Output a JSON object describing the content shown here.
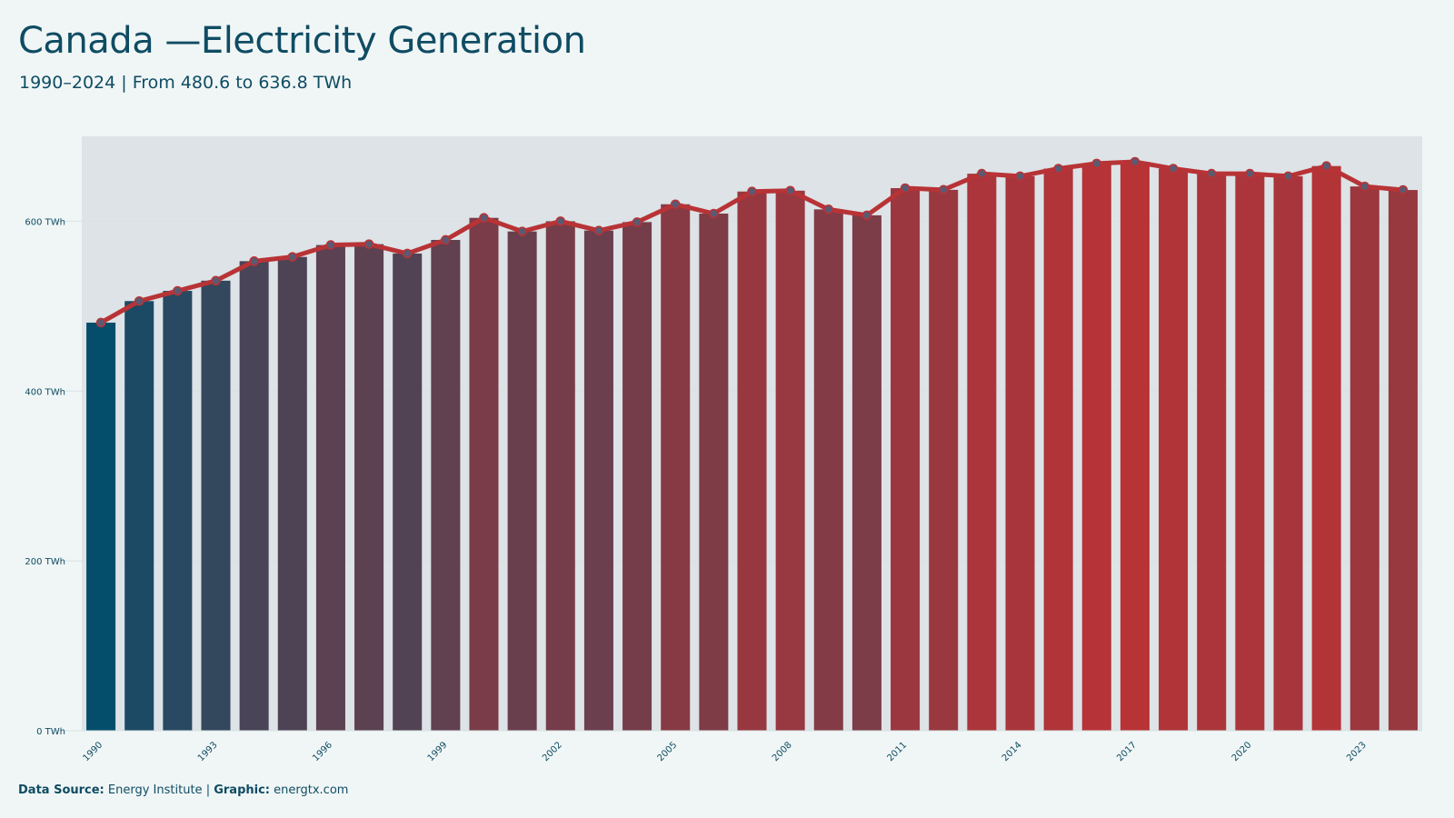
{
  "title": "Canada —Electricity Generation",
  "subtitle": "1990–2024 | From 480.6 to 636.8 TWh",
  "footer": {
    "source_label": "Data Source:",
    "source_value": "Energy Institute",
    "separator": "|",
    "graphic_label": "Graphic:",
    "graphic_value": "energtx.com"
  },
  "colors": {
    "start": "#044e6b",
    "end": "#b83336",
    "line": "#b83336",
    "gap": "#dde3e6",
    "grid": "#d9e1e3",
    "text": "#0f4c63"
  },
  "chart_data": {
    "type": "bar",
    "title": "Canada —Electricity Generation",
    "subtitle": "1990–2024 | From 480.6 to 636.8 TWh",
    "xlabel": "",
    "ylabel": "",
    "ylim": [
      0,
      700
    ],
    "y_unit": "TWh",
    "y_ticks": [
      "0 TWh",
      "200 TWh",
      "400 TWh",
      "600 TWh"
    ],
    "y_tick_values": [
      0,
      200,
      400,
      600
    ],
    "x_tick_labels": [
      "1990",
      "1993",
      "1996",
      "1999",
      "2002",
      "2005",
      "2008",
      "2011",
      "2014",
      "2017",
      "2020",
      "2023"
    ],
    "grid": "horizontal",
    "categories": [
      1990,
      1991,
      1992,
      1993,
      1994,
      1995,
      1996,
      1997,
      1998,
      1999,
      2000,
      2001,
      2002,
      2003,
      2004,
      2005,
      2006,
      2007,
      2008,
      2009,
      2010,
      2011,
      2012,
      2013,
      2014,
      2015,
      2016,
      2017,
      2018,
      2019,
      2020,
      2021,
      2022,
      2023,
      2024
    ],
    "values": [
      480.6,
      506,
      518,
      530,
      553,
      558,
      572,
      573,
      562,
      578,
      604,
      588,
      600,
      589,
      599,
      620,
      609,
      635,
      636,
      614,
      607,
      639,
      637,
      656,
      653,
      662,
      668,
      670,
      662,
      656,
      656,
      653,
      665,
      641,
      636.8
    ]
  }
}
